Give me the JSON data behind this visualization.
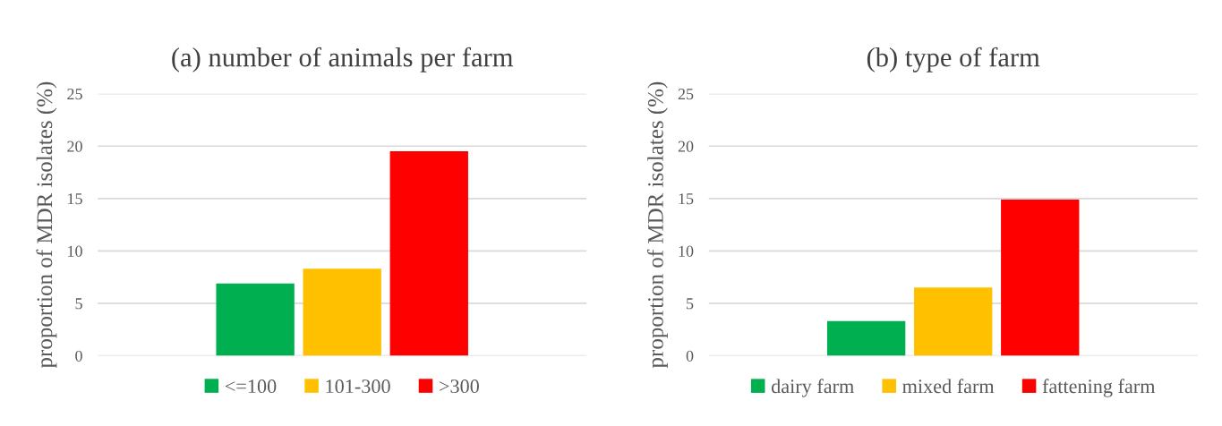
{
  "chart_data": [
    {
      "type": "bar",
      "title": "(a) number of animals per farm",
      "ylabel": "proportion of MDR isolates (%)",
      "categories": [
        null
      ],
      "series": [
        {
          "name": "<=100",
          "color": "#00b050",
          "values": [
            6.9
          ]
        },
        {
          "name": "101-300",
          "color": "#ffc000",
          "values": [
            8.3
          ]
        },
        {
          "name": ">300",
          "color": "#ff0000",
          "values": [
            19.5
          ]
        }
      ],
      "ylim": [
        0,
        25
      ],
      "yticks": [
        0,
        5,
        10,
        15,
        20,
        25
      ],
      "grid": "y",
      "legend": "bottom"
    },
    {
      "type": "bar",
      "title": "(b) type of farm",
      "ylabel": "proportion of MDR isolates (%)",
      "categories": [
        null
      ],
      "series": [
        {
          "name": "dairy farm",
          "color": "#00b050",
          "values": [
            3.3
          ]
        },
        {
          "name": "mixed farm",
          "color": "#ffc000",
          "values": [
            6.5
          ]
        },
        {
          "name": "fattening farm",
          "color": "#ff0000",
          "values": [
            14.9
          ]
        }
      ],
      "ylim": [
        0,
        25
      ],
      "yticks": [
        0,
        5,
        10,
        15,
        20,
        25
      ],
      "grid": "y",
      "legend": "bottom"
    }
  ]
}
